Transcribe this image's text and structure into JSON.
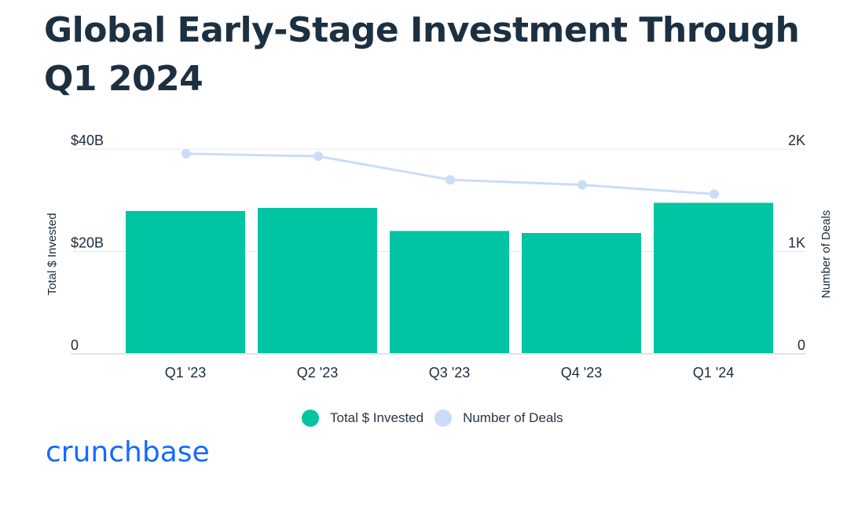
{
  "title": "Global Early-Stage Investment Through Q1 2024",
  "chart_data": {
    "type": "bar",
    "categories": [
      "Q1 '23",
      "Q2 '23",
      "Q3 '23",
      "Q4 '23",
      "Q1 '24"
    ],
    "series": [
      {
        "name": "Total $ Invested",
        "type": "bar",
        "axis": "left",
        "color": "#00c4a2",
        "values": [
          27.9,
          28.5,
          24.0,
          23.6,
          29.5
        ]
      },
      {
        "name": "Number of Deals",
        "type": "line",
        "axis": "right",
        "color": "#cbdcf7",
        "values": [
          1955,
          1930,
          1700,
          1650,
          1560
        ]
      }
    ],
    "ylabel": "Total $ Invested",
    "y2label": "Number of Deals",
    "ylim": [
      0,
      40
    ],
    "y2lim": [
      0,
      2000
    ],
    "yticks": [
      "0",
      "$20B",
      "$40B"
    ],
    "y2ticks": [
      "0",
      "1K",
      "2K"
    ],
    "grid": true,
    "legend_position": "bottom"
  },
  "legend": [
    {
      "label": "Total $ Invested",
      "color": "#00c4a2"
    },
    {
      "label": "Number of Deals",
      "color": "#cbdcf7"
    }
  ],
  "brand": {
    "logo_text": "crunchbase",
    "color": "#146aff"
  }
}
